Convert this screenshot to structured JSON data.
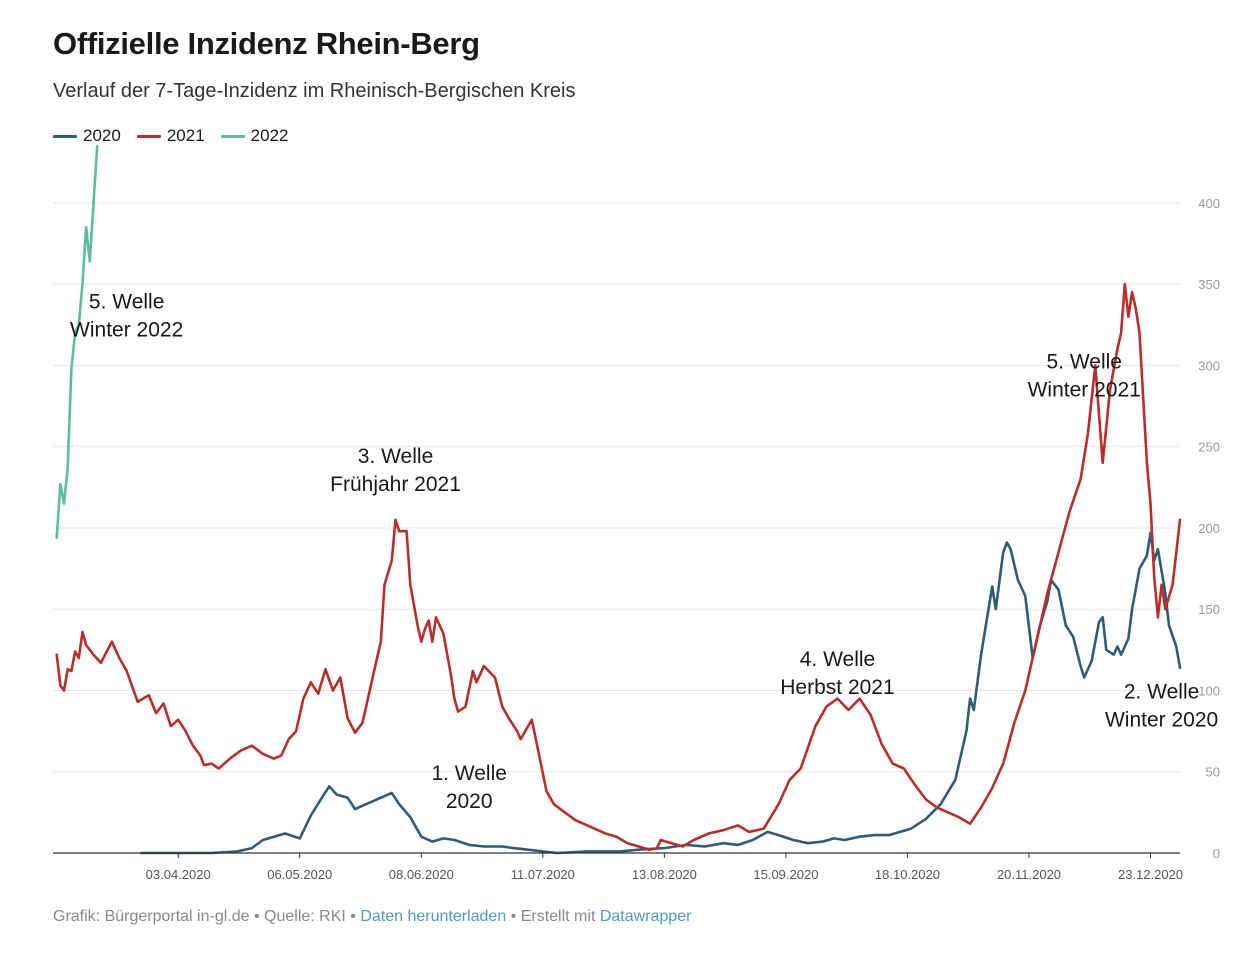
{
  "title": "Offizielle Inzidenz Rhein-Berg",
  "subtitle": "Verlauf der 7-Tage-Inzidenz im Rheinisch-Bergischen Kreis",
  "footer": {
    "prefix": "Grafik: Bürgerportal in-gl.de • Quelle: RKI • ",
    "download_link": "Daten herunterladen",
    "middle": " • Erstellt mit ",
    "datawrapper_link": "Datawrapper",
    "link_color": "#4b9bc2"
  },
  "chart_data": {
    "type": "line",
    "title": "Offizielle Inzidenz Rhein-Berg",
    "subtitle": "Verlauf der 7-Tage-Inzidenz im Rheinisch-Bergischen Kreis",
    "x_axis_type": "date",
    "xlim": [
      "2020-02-29",
      "2020-12-31"
    ],
    "x_ticks": [
      {
        "date": "2020-04-03",
        "label": "03.04.2020"
      },
      {
        "date": "2020-05-06",
        "label": "06.05.2020"
      },
      {
        "date": "2020-06-08",
        "label": "08.06.2020"
      },
      {
        "date": "2020-07-11",
        "label": "11.07.2020"
      },
      {
        "date": "2020-08-13",
        "label": "13.08.2020"
      },
      {
        "date": "2020-09-15",
        "label": "15.09.2020"
      },
      {
        "date": "2020-10-18",
        "label": "18.10.2020"
      },
      {
        "date": "2020-11-20",
        "label": "20.11.2020"
      },
      {
        "date": "2020-12-23",
        "label": "23.12.2020"
      }
    ],
    "ylim": [
      0,
      435
    ],
    "y_ticks": [
      0,
      50,
      100,
      150,
      200,
      250,
      300,
      350,
      400
    ],
    "y_axis_position": "right",
    "grid": "horizontal",
    "legend_position": "top-left",
    "series": [
      {
        "name": "2020",
        "color": "#2e5d78",
        "points": [
          [
            "2020-03-24",
            0
          ],
          [
            "2020-04-12",
            0
          ],
          [
            "2020-04-19",
            1
          ],
          [
            "2020-04-23",
            3
          ],
          [
            "2020-04-26",
            8
          ],
          [
            "2020-04-29",
            10
          ],
          [
            "2020-05-02",
            12
          ],
          [
            "2020-05-06",
            9
          ],
          [
            "2020-05-09",
            23
          ],
          [
            "2020-05-12",
            34
          ],
          [
            "2020-05-14",
            41
          ],
          [
            "2020-05-16",
            36
          ],
          [
            "2020-05-19",
            34
          ],
          [
            "2020-05-21",
            27
          ],
          [
            "2020-05-24",
            30
          ],
          [
            "2020-05-28",
            34
          ],
          [
            "2020-05-31",
            37
          ],
          [
            "2020-06-02",
            30
          ],
          [
            "2020-06-05",
            22
          ],
          [
            "2020-06-08",
            10
          ],
          [
            "2020-06-11",
            7
          ],
          [
            "2020-06-14",
            9
          ],
          [
            "2020-06-17",
            8
          ],
          [
            "2020-06-21",
            5
          ],
          [
            "2020-06-25",
            4
          ],
          [
            "2020-06-30",
            4
          ],
          [
            "2020-07-03",
            3
          ],
          [
            "2020-07-07",
            2
          ],
          [
            "2020-07-11",
            1
          ],
          [
            "2020-07-15",
            0
          ],
          [
            "2020-07-23",
            1
          ],
          [
            "2020-08-01",
            1
          ],
          [
            "2020-08-06",
            2
          ],
          [
            "2020-08-13",
            3
          ],
          [
            "2020-08-19",
            5
          ],
          [
            "2020-08-24",
            4
          ],
          [
            "2020-08-29",
            6
          ],
          [
            "2020-09-02",
            5
          ],
          [
            "2020-09-06",
            8
          ],
          [
            "2020-09-10",
            13
          ],
          [
            "2020-09-13",
            11
          ],
          [
            "2020-09-17",
            8
          ],
          [
            "2020-09-21",
            6
          ],
          [
            "2020-09-25",
            7
          ],
          [
            "2020-09-28",
            9
          ],
          [
            "2020-10-01",
            8
          ],
          [
            "2020-10-05",
            10
          ],
          [
            "2020-10-09",
            11
          ],
          [
            "2020-10-13",
            11
          ],
          [
            "2020-10-16",
            13
          ],
          [
            "2020-10-19",
            15
          ],
          [
            "2020-10-23",
            21
          ],
          [
            "2020-10-27",
            30
          ],
          [
            "2020-10-31",
            45
          ],
          [
            "2020-11-03",
            75
          ],
          [
            "2020-11-04",
            95
          ],
          [
            "2020-11-05",
            88
          ],
          [
            "2020-11-07",
            122
          ],
          [
            "2020-11-09",
            150
          ],
          [
            "2020-11-10",
            164
          ],
          [
            "2020-11-11",
            150
          ],
          [
            "2020-11-13",
            185
          ],
          [
            "2020-11-14",
            191
          ],
          [
            "2020-11-15",
            187
          ],
          [
            "2020-11-17",
            168
          ],
          [
            "2020-11-19",
            158
          ],
          [
            "2020-11-21",
            120
          ],
          [
            "2020-11-23",
            140
          ],
          [
            "2020-11-25",
            155
          ],
          [
            "2020-11-26",
            168
          ],
          [
            "2020-11-28",
            162
          ],
          [
            "2020-11-30",
            140
          ],
          [
            "2020-12-02",
            133
          ],
          [
            "2020-12-04",
            115
          ],
          [
            "2020-12-05",
            108
          ],
          [
            "2020-12-07",
            118
          ],
          [
            "2020-12-09",
            142
          ],
          [
            "2020-12-10",
            145
          ],
          [
            "2020-12-11",
            125
          ],
          [
            "2020-12-13",
            122
          ],
          [
            "2020-12-14",
            127
          ],
          [
            "2020-12-15",
            122
          ],
          [
            "2020-12-17",
            132
          ],
          [
            "2020-12-18",
            150
          ],
          [
            "2020-12-20",
            175
          ],
          [
            "2020-12-22",
            183
          ],
          [
            "2020-12-23",
            197
          ],
          [
            "2020-12-24",
            180
          ],
          [
            "2020-12-25",
            187
          ],
          [
            "2020-12-27",
            160
          ],
          [
            "2020-12-28",
            140
          ],
          [
            "2020-12-30",
            127
          ],
          [
            "2020-12-31",
            114
          ]
        ]
      },
      {
        "name": "2021",
        "color": "#b92e2b",
        "points": [
          [
            "2020-03-01",
            122
          ],
          [
            "2020-03-02",
            103
          ],
          [
            "2020-03-03",
            100
          ],
          [
            "2020-03-04",
            113
          ],
          [
            "2020-03-05",
            112
          ],
          [
            "2020-03-06",
            124
          ],
          [
            "2020-03-07",
            120
          ],
          [
            "2020-03-08",
            136
          ],
          [
            "2020-03-09",
            128
          ],
          [
            "2020-03-11",
            122
          ],
          [
            "2020-03-13",
            117
          ],
          [
            "2020-03-16",
            130
          ],
          [
            "2020-03-18",
            120
          ],
          [
            "2020-03-20",
            112
          ],
          [
            "2020-03-23",
            93
          ],
          [
            "2020-03-26",
            97
          ],
          [
            "2020-03-28",
            86
          ],
          [
            "2020-03-30",
            92
          ],
          [
            "2020-04-01",
            78
          ],
          [
            "2020-04-03",
            82
          ],
          [
            "2020-04-05",
            75
          ],
          [
            "2020-04-07",
            66
          ],
          [
            "2020-04-09",
            60
          ],
          [
            "2020-04-10",
            54
          ],
          [
            "2020-04-12",
            55
          ],
          [
            "2020-04-14",
            52
          ],
          [
            "2020-04-17",
            58
          ],
          [
            "2020-04-20",
            63
          ],
          [
            "2020-04-23",
            66
          ],
          [
            "2020-04-26",
            61
          ],
          [
            "2020-04-29",
            58
          ],
          [
            "2020-05-01",
            60
          ],
          [
            "2020-05-03",
            70
          ],
          [
            "2020-05-05",
            75
          ],
          [
            "2020-05-07",
            95
          ],
          [
            "2020-05-09",
            105
          ],
          [
            "2020-05-11",
            98
          ],
          [
            "2020-05-13",
            113
          ],
          [
            "2020-05-15",
            100
          ],
          [
            "2020-05-17",
            108
          ],
          [
            "2020-05-19",
            83
          ],
          [
            "2020-05-21",
            74
          ],
          [
            "2020-05-23",
            80
          ],
          [
            "2020-05-24",
            90
          ],
          [
            "2020-05-26",
            110
          ],
          [
            "2020-05-28",
            130
          ],
          [
            "2020-05-29",
            165
          ],
          [
            "2020-05-31",
            180
          ],
          [
            "2020-06-01",
            205
          ],
          [
            "2020-06-02",
            198
          ],
          [
            "2020-06-04",
            198
          ],
          [
            "2020-06-05",
            165
          ],
          [
            "2020-06-07",
            140
          ],
          [
            "2020-06-08",
            130
          ],
          [
            "2020-06-09",
            138
          ],
          [
            "2020-06-10",
            143
          ],
          [
            "2020-06-11",
            130
          ],
          [
            "2020-06-12",
            145
          ],
          [
            "2020-06-14",
            135
          ],
          [
            "2020-06-16",
            110
          ],
          [
            "2020-06-17",
            95
          ],
          [
            "2020-06-18",
            87
          ],
          [
            "2020-06-20",
            90
          ],
          [
            "2020-06-22",
            112
          ],
          [
            "2020-06-23",
            105
          ],
          [
            "2020-06-25",
            115
          ],
          [
            "2020-06-28",
            108
          ],
          [
            "2020-06-30",
            90
          ],
          [
            "2020-07-02",
            82
          ],
          [
            "2020-07-04",
            75
          ],
          [
            "2020-07-05",
            70
          ],
          [
            "2020-07-08",
            82
          ],
          [
            "2020-07-10",
            60
          ],
          [
            "2020-07-12",
            38
          ],
          [
            "2020-07-14",
            30
          ],
          [
            "2020-07-17",
            25
          ],
          [
            "2020-07-20",
            20
          ],
          [
            "2020-07-22",
            18
          ],
          [
            "2020-07-25",
            15
          ],
          [
            "2020-07-28",
            12
          ],
          [
            "2020-07-31",
            10
          ],
          [
            "2020-08-03",
            6
          ],
          [
            "2020-08-06",
            4
          ],
          [
            "2020-08-09",
            2
          ],
          [
            "2020-08-11",
            3
          ],
          [
            "2020-08-12",
            8
          ],
          [
            "2020-08-15",
            6
          ],
          [
            "2020-08-18",
            4
          ],
          [
            "2020-08-21",
            8
          ],
          [
            "2020-08-25",
            12
          ],
          [
            "2020-08-29",
            14
          ],
          [
            "2020-09-02",
            17
          ],
          [
            "2020-09-05",
            13
          ],
          [
            "2020-09-09",
            15
          ],
          [
            "2020-09-13",
            30
          ],
          [
            "2020-09-16",
            45
          ],
          [
            "2020-09-19",
            52
          ],
          [
            "2020-09-23",
            78
          ],
          [
            "2020-09-26",
            90
          ],
          [
            "2020-09-29",
            95
          ],
          [
            "2020-10-02",
            88
          ],
          [
            "2020-10-05",
            95
          ],
          [
            "2020-10-08",
            85
          ],
          [
            "2020-10-11",
            67
          ],
          [
            "2020-10-14",
            55
          ],
          [
            "2020-10-17",
            52
          ],
          [
            "2020-10-20",
            42
          ],
          [
            "2020-10-23",
            33
          ],
          [
            "2020-10-26",
            28
          ],
          [
            "2020-10-29",
            25
          ],
          [
            "2020-11-01",
            22
          ],
          [
            "2020-11-04",
            18
          ],
          [
            "2020-11-07",
            28
          ],
          [
            "2020-11-10",
            40
          ],
          [
            "2020-11-13",
            55
          ],
          [
            "2020-11-16",
            80
          ],
          [
            "2020-11-19",
            100
          ],
          [
            "2020-11-22",
            130
          ],
          [
            "2020-11-25",
            160
          ],
          [
            "2020-11-28",
            185
          ],
          [
            "2020-12-01",
            210
          ],
          [
            "2020-12-04",
            230
          ],
          [
            "2020-12-06",
            258
          ],
          [
            "2020-12-08",
            300
          ],
          [
            "2020-12-09",
            270
          ],
          [
            "2020-12-10",
            240
          ],
          [
            "2020-12-12",
            285
          ],
          [
            "2020-12-14",
            310
          ],
          [
            "2020-12-15",
            320
          ],
          [
            "2020-12-16",
            350
          ],
          [
            "2020-12-17",
            330
          ],
          [
            "2020-12-18",
            345
          ],
          [
            "2020-12-19",
            335
          ],
          [
            "2020-12-20",
            320
          ],
          [
            "2020-12-22",
            240
          ],
          [
            "2020-12-23",
            215
          ],
          [
            "2020-12-24",
            170
          ],
          [
            "2020-12-25",
            145
          ],
          [
            "2020-12-26",
            165
          ],
          [
            "2020-12-27",
            150
          ],
          [
            "2020-12-29",
            165
          ],
          [
            "2020-12-30",
            185
          ],
          [
            "2020-12-31",
            205
          ]
        ]
      },
      {
        "name": "2022",
        "color": "#5bbda2",
        "points": [
          [
            "2020-03-01",
            194
          ],
          [
            "2020-03-02",
            227
          ],
          [
            "2020-03-03",
            215
          ],
          [
            "2020-03-04",
            237
          ],
          [
            "2020-03-05",
            298
          ],
          [
            "2020-03-06",
            320
          ],
          [
            "2020-03-07",
            325
          ],
          [
            "2020-03-08",
            350
          ],
          [
            "2020-03-09",
            385
          ],
          [
            "2020-03-10",
            364
          ],
          [
            "2020-03-11",
            400
          ],
          [
            "2020-03-12",
            435
          ]
        ]
      }
    ],
    "annotations": [
      {
        "lines": [
          "5. Welle",
          "Winter 2022"
        ],
        "date": "2020-03-20",
        "y": 335
      },
      {
        "lines": [
          "3. Welle",
          "Frühjahr 2021"
        ],
        "date": "2020-06-01",
        "y": 240
      },
      {
        "lines": [
          "1. Welle",
          "2020"
        ],
        "date": "2020-06-21",
        "y": 45
      },
      {
        "lines": [
          "4. Welle",
          "Herbst 2021"
        ],
        "date": "2020-09-29",
        "y": 115
      },
      {
        "lines": [
          "5. Welle",
          "Winter 2021"
        ],
        "date": "2020-12-05",
        "y": 298
      },
      {
        "lines": [
          "2. Welle",
          "Winter 2020"
        ],
        "date": "2020-12-26",
        "y": 95
      }
    ]
  }
}
